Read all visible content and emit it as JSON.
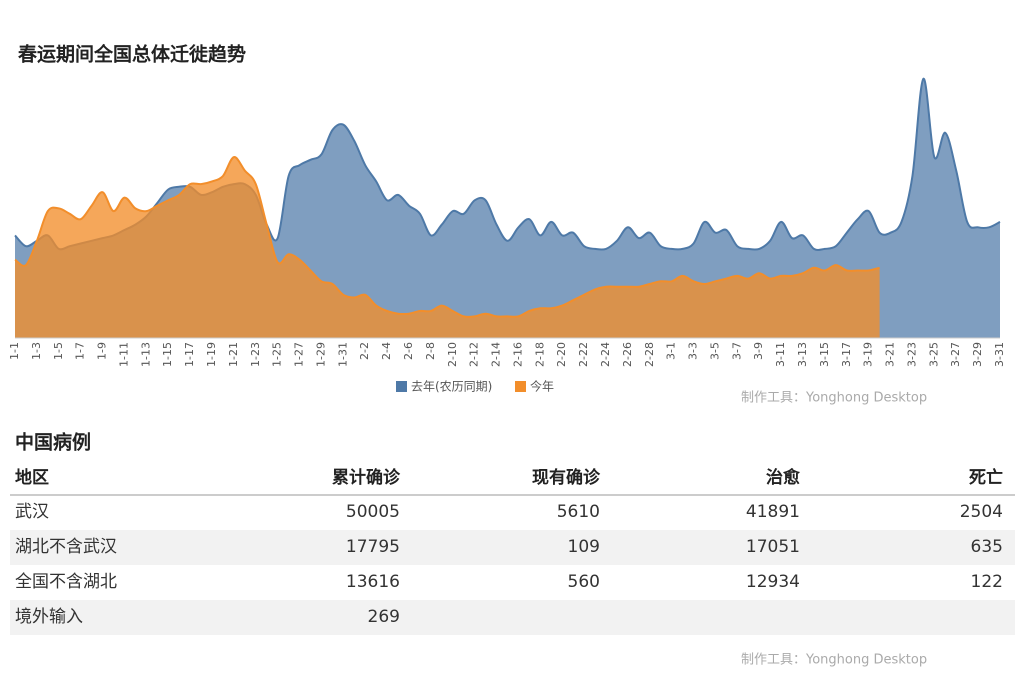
{
  "chart_data": {
    "type": "area",
    "title": "春运期间全国总体迁徙趋势",
    "categories": [
      "1-1",
      null,
      "1-3",
      null,
      "1-5",
      null,
      "1-7",
      null,
      "1-9",
      null,
      "1-11",
      null,
      "1-13",
      null,
      "1-15",
      null,
      "1-17",
      null,
      "1-19",
      null,
      "1-21",
      null,
      "1-23",
      null,
      "1-25",
      null,
      "1-27",
      null,
      "1-29",
      null,
      "1-31",
      null,
      "2-2",
      null,
      "2-4",
      null,
      "2-6",
      null,
      "2-8",
      null,
      "2-10",
      null,
      "2-12",
      null,
      "2-14",
      null,
      "2-16",
      null,
      "2-18",
      null,
      "2-20",
      null,
      "2-22",
      null,
      "2-24",
      null,
      "2-26",
      null,
      "2-28",
      null,
      "3-1",
      null,
      "3-3",
      null,
      "3-5",
      null,
      "3-7",
      null,
      "3-9",
      null,
      "3-11",
      null,
      "3-13",
      null,
      "3-15",
      null,
      "3-17",
      null,
      "3-19",
      null,
      "3-21",
      null,
      "3-23",
      null,
      "3-25",
      null,
      "3-27",
      null,
      "3-29",
      null,
      "3-31"
    ],
    "ylim": [
      0,
      100
    ],
    "series": [
      {
        "name": "去年(农历同期)",
        "color": "#4e79a7",
        "values": [
          38,
          34,
          36,
          38,
          33,
          34,
          35,
          36,
          37,
          38,
          40,
          42,
          45,
          50,
          55,
          56,
          56,
          53,
          54,
          56,
          57,
          57,
          53,
          42,
          37,
          60,
          64,
          66,
          68,
          77,
          79,
          73,
          64,
          58,
          51,
          53,
          49,
          46,
          38,
          42,
          47,
          46,
          51,
          51,
          42,
          36,
          41,
          44,
          38,
          43,
          38,
          39,
          34,
          33,
          33,
          36,
          41,
          37,
          39,
          34,
          33,
          33,
          35,
          43,
          39,
          40,
          34,
          33,
          33,
          36,
          43,
          37,
          38,
          33,
          33,
          34,
          39,
          44,
          47,
          39,
          39,
          43,
          60,
          96,
          67,
          76,
          62,
          43,
          41,
          41,
          43
        ]
      },
      {
        "name": "今年",
        "color": "#f28e2b",
        "values": [
          29,
          27,
          36,
          47,
          48,
          46,
          44,
          49,
          54,
          47,
          52,
          48,
          47,
          49,
          51,
          53,
          57,
          57,
          58,
          60,
          67,
          62,
          57,
          42,
          28,
          31,
          29,
          25,
          21,
          20,
          16,
          15,
          16,
          12,
          10,
          9,
          9,
          10,
          10,
          12,
          10,
          8,
          8,
          9,
          8,
          8,
          8,
          10,
          11,
          11,
          12,
          14,
          16,
          18,
          19,
          19,
          19,
          19,
          20,
          21,
          21,
          23,
          21,
          20,
          21,
          22,
          23,
          22,
          24,
          22,
          23,
          23,
          24,
          26,
          25,
          27,
          25,
          25,
          25,
          26,
          null,
          null,
          null,
          null,
          null,
          null,
          null,
          null,
          null,
          null,
          null
        ]
      }
    ]
  },
  "credit": "制作工具：Yonghong Desktop",
  "table": {
    "title": "中国病例",
    "columns": [
      "地区",
      "累计确诊",
      "现有确诊",
      "治愈",
      "死亡"
    ],
    "rows": [
      [
        "武汉",
        50005,
        5610,
        41891,
        2504
      ],
      [
        "湖北不含武汉",
        17795,
        109,
        17051,
        635
      ],
      [
        "全国不含湖北",
        13616,
        560,
        12934,
        122
      ],
      [
        "境外输入",
        269
      ]
    ]
  }
}
